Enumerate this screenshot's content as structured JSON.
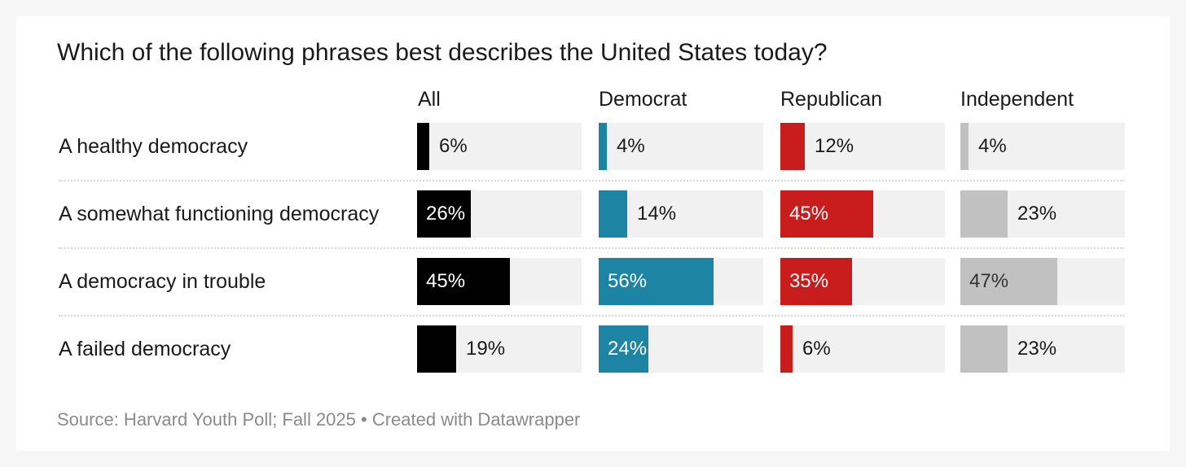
{
  "chart_data": {
    "type": "bar",
    "title": "Which of the following phrases best describes the United States today?",
    "categories": [
      "A healthy democracy",
      "A somewhat functioning democracy",
      "A democracy in trouble",
      "A failed democracy"
    ],
    "series": [
      {
        "name": "All",
        "color": "#000000",
        "values": [
          6,
          26,
          45,
          19
        ]
      },
      {
        "name": "Democrat",
        "color": "#1d84a3",
        "values": [
          4,
          14,
          56,
          24
        ]
      },
      {
        "name": "Republican",
        "color": "#c91d1d",
        "values": [
          12,
          45,
          35,
          6
        ]
      },
      {
        "name": "Independent",
        "color": "#c1c1c1",
        "values": [
          4,
          23,
          47,
          23
        ]
      }
    ],
    "value_suffix": "%",
    "xlim": [
      0,
      80
    ],
    "source": "Source: Harvard Youth Poll; Fall 2025 • Created with Datawrapper"
  }
}
